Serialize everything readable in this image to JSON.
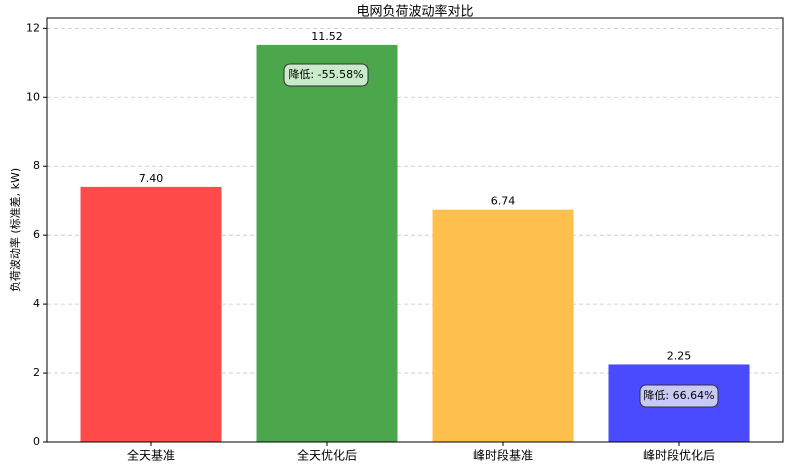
{
  "chart_data": {
    "type": "bar",
    "title": "电网负荷波动率对比",
    "ylabel": "负荷波动率 (标准差, kW)",
    "categories": [
      "全天基准",
      "全天优化后",
      "峰时段基准",
      "峰时段优化后"
    ],
    "values": [
      7.4,
      11.52,
      6.74,
      2.25
    ],
    "value_labels": [
      "7.40",
      "11.52",
      "6.74",
      "2.25"
    ],
    "colors": [
      "#ff4a4a",
      "#4ca64c",
      "#ffbf4c",
      "#4a4aff"
    ],
    "annotations": [
      "降低: -55.58%",
      "降低: 66.64%"
    ],
    "ylim": [
      0,
      12.3
    ],
    "yticks": [
      0,
      2,
      4,
      6,
      8,
      10,
      12
    ],
    "grid": true
  }
}
